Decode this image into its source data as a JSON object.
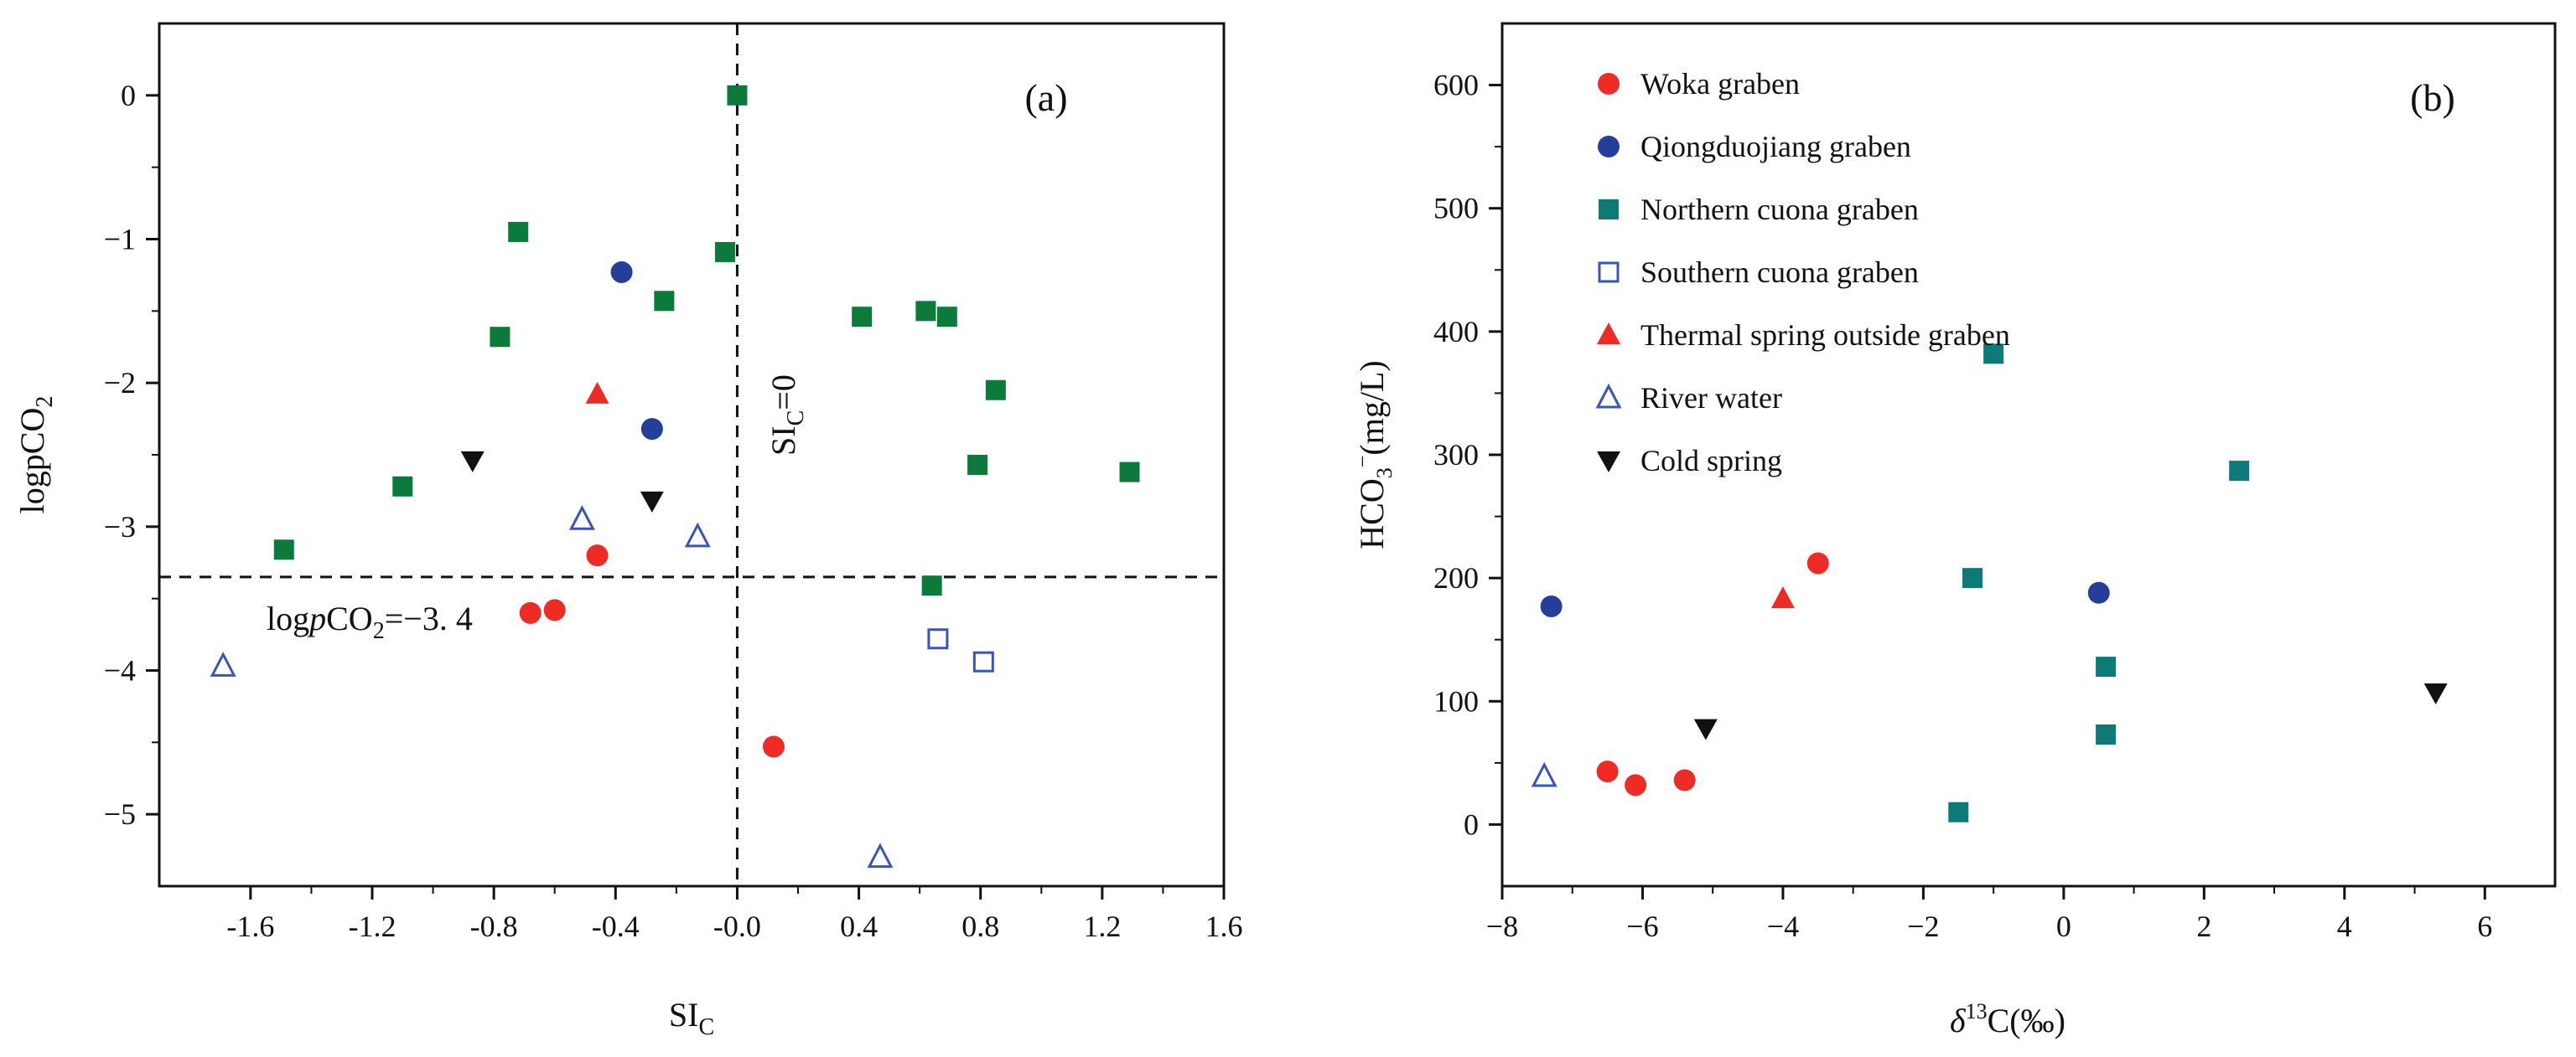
{
  "chart_data": [
    {
      "panel": "(a)",
      "type": "scatter",
      "title": "",
      "xlabel": "SI",
      "xlabel_sub": "C",
      "ylabel": "logpCO",
      "ylabel_sub": "2",
      "xlim": [
        -1.9,
        1.6
      ],
      "ylim": [
        -5.5,
        0.5
      ],
      "xticks": [
        -1.6,
        -1.2,
        -0.8,
        -0.4,
        0.0,
        0.4,
        0.8,
        1.2,
        1.6
      ],
      "xtick_labels": [
        "-1.6",
        "-1.2",
        "-0.8",
        "-0.4",
        "-0.0",
        "0.4",
        "0.8",
        "1.2",
        "1.6"
      ],
      "yticks": [
        0,
        -1,
        -2,
        -3,
        -4,
        -5
      ],
      "ytick_labels": [
        "0",
        "−1",
        "−2",
        "−3",
        "−4",
        "−5"
      ],
      "reference_lines": [
        {
          "orientation": "vertical",
          "value": 0,
          "label": "SI",
          "label_sub": "C",
          "label_suffix": "=0"
        },
        {
          "orientation": "horizontal",
          "value": -3.35,
          "label": "log",
          "label_italic": "p",
          "label_mid": "CO",
          "label_sub": "2",
          "label_suffix": "=−3. 4"
        }
      ],
      "series": [
        {
          "name": "Woka graben",
          "marker": "circle",
          "color": "#ee2b24",
          "points": [
            [
              -0.46,
              -3.2
            ],
            [
              -0.6,
              -3.58
            ],
            [
              -0.68,
              -3.6
            ],
            [
              0.12,
              -4.53
            ]
          ]
        },
        {
          "name": "Qiongduojiang graben",
          "marker": "circle",
          "color": "#243f9a",
          "points": [
            [
              -0.38,
              -1.23
            ],
            [
              -0.28,
              -2.32
            ]
          ]
        },
        {
          "name": "Northern cuona graben",
          "marker": "square",
          "color": "#0b7a3a",
          "points": [
            [
              0.0,
              0.0
            ],
            [
              -0.72,
              -0.95
            ],
            [
              -0.04,
              -1.09
            ],
            [
              -0.24,
              -1.43
            ],
            [
              -0.78,
              -1.68
            ],
            [
              -1.1,
              -2.72
            ],
            [
              -1.49,
              -3.16
            ],
            [
              0.41,
              -1.54
            ],
            [
              0.62,
              -1.5
            ],
            [
              0.69,
              -1.54
            ],
            [
              0.85,
              -2.05
            ],
            [
              0.79,
              -2.57
            ],
            [
              1.29,
              -2.62
            ],
            [
              0.64,
              -3.41
            ]
          ]
        },
        {
          "name": "Southern cuona graben",
          "marker": "square-open",
          "color": "#3a55b8",
          "points": [
            [
              0.66,
              -3.78
            ],
            [
              0.81,
              -3.94
            ]
          ]
        },
        {
          "name": "Thermal spring outside graben",
          "marker": "triangle",
          "color": "#ee2b24",
          "points": [
            [
              -0.46,
              -2.08
            ]
          ]
        },
        {
          "name": "River water",
          "marker": "triangle-open",
          "color": "#3a55b8",
          "points": [
            [
              -0.51,
              -2.95
            ],
            [
              -0.13,
              -3.07
            ],
            [
              -1.69,
              -3.97
            ],
            [
              0.47,
              -5.3
            ]
          ]
        },
        {
          "name": "Cold spring",
          "marker": "triangle-down",
          "color": "#111111",
          "points": [
            [
              -0.87,
              -2.54
            ],
            [
              -0.28,
              -2.82
            ]
          ]
        }
      ]
    },
    {
      "panel": "(b)",
      "type": "scatter",
      "title": "",
      "xlabel": "δ",
      "xlabel_sup": "13",
      "xlabel_suffix": "C(‰)",
      "ylabel": "HCO",
      "ylabel_sub": "3",
      "ylabel_sup": "−",
      "ylabel_suffix": "(mg/L)",
      "xlim": [
        -8,
        7
      ],
      "ylim": [
        -50,
        650
      ],
      "xticks": [
        -8,
        -6,
        -4,
        -2,
        0,
        2,
        4,
        6
      ],
      "xtick_labels": [
        "−8",
        "−6",
        "−4",
        "−2",
        "0",
        "2",
        "4",
        "6"
      ],
      "yticks": [
        0,
        100,
        200,
        300,
        400,
        500,
        600
      ],
      "ytick_labels": [
        "0",
        "100",
        "200",
        "300",
        "400",
        "500",
        "600"
      ],
      "legend_position": "top-left",
      "series": [
        {
          "name": "Woka graben",
          "marker": "circle",
          "color": "#ee2b24",
          "points": [
            [
              -3.5,
              212
            ],
            [
              -6.5,
              43
            ],
            [
              -6.1,
              32
            ],
            [
              -5.4,
              36
            ]
          ]
        },
        {
          "name": "Qiongduojiang graben",
          "marker": "circle",
          "color": "#243f9a",
          "points": [
            [
              -7.3,
              177
            ],
            [
              0.5,
              188
            ]
          ]
        },
        {
          "name": "Northern cuona graben",
          "marker": "square",
          "color": "#0e7a77",
          "points": [
            [
              -1.0,
              382
            ],
            [
              2.5,
              287
            ],
            [
              -1.3,
              200
            ],
            [
              0.6,
              128
            ],
            [
              0.6,
              73
            ],
            [
              -1.5,
              10
            ]
          ]
        },
        {
          "name": "Southern cuona graben",
          "marker": "square-open",
          "color": "#3a55b8",
          "points": []
        },
        {
          "name": "Thermal spring outside graben",
          "marker": "triangle",
          "color": "#ee2b24",
          "points": [
            [
              -4.0,
              183
            ]
          ]
        },
        {
          "name": "River water",
          "marker": "triangle-open",
          "color": "#3a55b8",
          "points": [
            [
              -7.4,
              39
            ]
          ]
        },
        {
          "name": "Cold spring",
          "marker": "triangle-down",
          "color": "#111111",
          "points": [
            [
              -5.1,
              78
            ],
            [
              5.3,
              107
            ]
          ]
        }
      ]
    }
  ]
}
